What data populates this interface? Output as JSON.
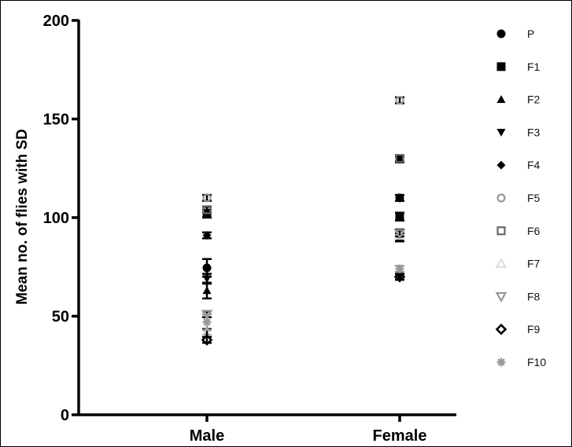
{
  "chart_data": {
    "type": "scatter",
    "title": "",
    "xlabel": "",
    "ylabel": "Mean no. of flies with SD",
    "ylim": [
      0,
      200
    ],
    "yticks": [
      0,
      50,
      100,
      150,
      200
    ],
    "categories": [
      "Male",
      "Female"
    ],
    "grid": false,
    "legend_position": "right",
    "series": [
      {
        "name": "P",
        "marker": "circle",
        "color": "#000000",
        "fill": true,
        "values": [
          74.5,
          110
        ],
        "sd": [
          4.5,
          1.5
        ]
      },
      {
        "name": "F1",
        "marker": "square",
        "color": "#000000",
        "fill": true,
        "values": [
          102,
          100.5
        ],
        "sd": [
          2,
          2
        ]
      },
      {
        "name": "F2",
        "marker": "triangle-up",
        "color": "#000000",
        "fill": true,
        "values": [
          63,
          90
        ],
        "sd": [
          4,
          2
        ]
      },
      {
        "name": "F3",
        "marker": "triangle-down",
        "color": "#000000",
        "fill": true,
        "values": [
          69,
          70
        ],
        "sd": [
          2.5,
          1.5
        ]
      },
      {
        "name": "F4",
        "marker": "diamond",
        "color": "#000000",
        "fill": true,
        "values": [
          91,
          129.5
        ],
        "sd": [
          1.5,
          1.5
        ]
      },
      {
        "name": "F5",
        "marker": "circle",
        "color": "#999999",
        "fill": false,
        "values": [
          110,
          159.5
        ],
        "sd": [
          1.5,
          1.5
        ]
      },
      {
        "name": "F6",
        "marker": "square",
        "color": "#666666",
        "fill": false,
        "values": [
          104,
          130
        ],
        "sd": [
          1.5,
          1.5
        ]
      },
      {
        "name": "F7",
        "marker": "triangle-up",
        "color": "#dddddd",
        "fill": false,
        "values": [
          42,
          91
        ],
        "sd": [
          1.5,
          3
        ]
      },
      {
        "name": "F8",
        "marker": "triangle-down",
        "color": "#999999",
        "fill": false,
        "values": [
          51,
          92
        ],
        "sd": [
          1.5,
          1.5
        ]
      },
      {
        "name": "F9",
        "marker": "diamond",
        "color": "#000000",
        "fill": false,
        "values": [
          38,
          70
        ],
        "sd": [
          1.5,
          1.5
        ]
      },
      {
        "name": "F10",
        "marker": "asterisk",
        "color": "#999999",
        "fill": true,
        "values": [
          47,
          74
        ],
        "sd": [
          4,
          1.5
        ]
      }
    ]
  }
}
